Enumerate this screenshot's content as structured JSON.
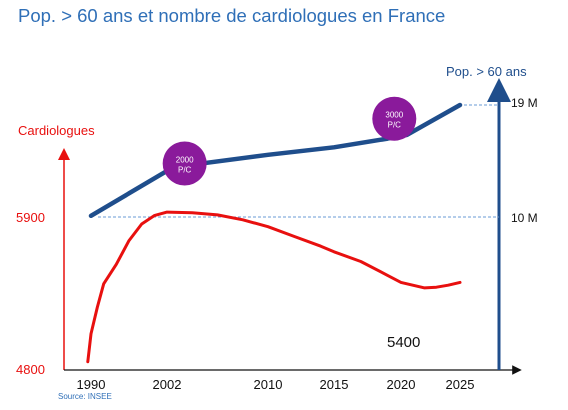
{
  "title": "Pop. > 60 ans et nombre de cardiologues en France",
  "source": "Source: INSEE",
  "chart_data": {
    "type": "line",
    "title": "Pop. > 60 ans et nombre de cardiologues en France",
    "x_ticks": [
      "1990",
      "2002",
      "2010",
      "2015",
      "2020",
      "2025"
    ],
    "left_axis": {
      "label": "Cardiologues",
      "ticks": [
        "5900",
        "4800"
      ],
      "color": "#e8100f"
    },
    "right_axis": {
      "label": "Pop. > 60 ans",
      "ticks": [
        "19 M",
        "10 M"
      ],
      "color": "#1f4e8c"
    },
    "series": [
      {
        "axis": "left",
        "color": "#e8100f",
        "end_label": "5400",
        "points": [
          [
            1989.5,
            4860
          ],
          [
            1990,
            5060
          ],
          [
            1991,
            5250
          ],
          [
            1992,
            5420
          ],
          [
            1994,
            5560
          ],
          [
            1996,
            5730
          ],
          [
            1998,
            5850
          ],
          [
            2000,
            5910
          ],
          [
            2002,
            5935
          ],
          [
            2004,
            5930
          ],
          [
            2006,
            5915
          ],
          [
            2008,
            5880
          ],
          [
            2010,
            5830
          ],
          [
            2012,
            5760
          ],
          [
            2014,
            5690
          ],
          [
            2015,
            5650
          ],
          [
            2017,
            5580
          ],
          [
            2019,
            5480
          ],
          [
            2020,
            5430
          ],
          [
            2022,
            5390
          ],
          [
            2023,
            5395
          ],
          [
            2024,
            5410
          ],
          [
            2025,
            5430
          ]
        ]
      },
      {
        "axis": "right",
        "color": "#1f4e8c",
        "points": [
          [
            1990,
            10.1
          ],
          [
            2002.5,
            14.0
          ],
          [
            2010,
            15.0
          ],
          [
            2015,
            15.6
          ],
          [
            2019,
            16.3
          ],
          [
            2020.5,
            16.6
          ],
          [
            2025,
            19.0
          ]
        ]
      }
    ],
    "reference_lines": [
      {
        "axis": "left",
        "value": 5900
      },
      {
        "axis": "right",
        "value": 19
      }
    ],
    "annotations": [
      {
        "text_lines": [
          "2000",
          "P/C"
        ],
        "x": 2003.4,
        "y": 14.3,
        "axis": "right",
        "color": "#8a1a9b"
      },
      {
        "text_lines": [
          "3000",
          "P/C"
        ],
        "x": 2019.5,
        "y": 17.9,
        "axis": "right",
        "color": "#8a1a9b"
      }
    ]
  }
}
